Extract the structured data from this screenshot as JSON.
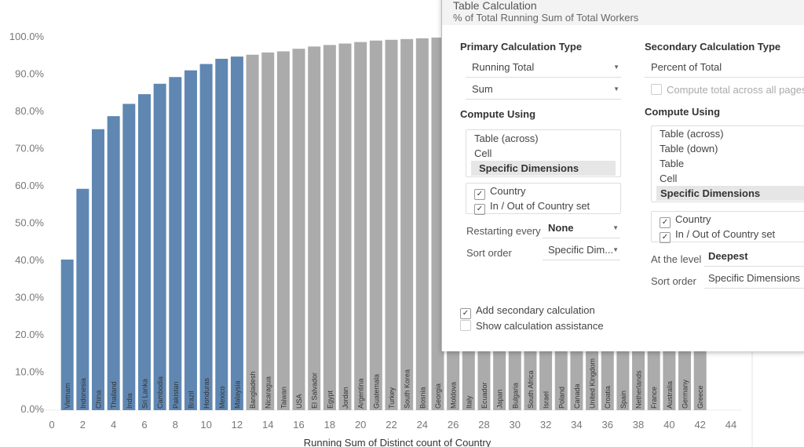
{
  "chart_data": {
    "type": "bar",
    "xlabel": "Running Sum of Distinct count of Country",
    "ylabel": "",
    "xlim": [
      0,
      44
    ],
    "ylim": [
      0,
      100
    ],
    "x_ticks": [
      "0",
      "2",
      "4",
      "6",
      "8",
      "10",
      "12",
      "14",
      "16",
      "18",
      "20",
      "22",
      "24",
      "26",
      "28",
      "30",
      "32",
      "34",
      "36",
      "38",
      "40",
      "42",
      "44"
    ],
    "y_ticks": [
      "0.0%",
      "10.0%",
      "20.0%",
      "30.0%",
      "40.0%",
      "50.0%",
      "60.0%",
      "70.0%",
      "80.0%",
      "90.0%",
      "100.0%"
    ],
    "colors": {
      "in_set": "#5f87b2",
      "out_set": "#ababab"
    },
    "categories": [
      "Vietnam",
      "Indonesia",
      "China",
      "Thailand",
      "India",
      "Sri Lanka",
      "Cambodia",
      "Pakistan",
      "Brazil",
      "Honduras",
      "Mexico",
      "Malaysia",
      "Bangladesh",
      "Nicaragua",
      "Taiwan",
      "USA",
      "El Salvador",
      "Egypt",
      "Jordan",
      "Argentina",
      "Guatemala",
      "Turkey",
      "South Korea",
      "Bosnia",
      "Georgia",
      "Moldova",
      "Italy",
      "Ecuador",
      "Japan",
      "Bulgaria",
      "South Africa",
      "Israel",
      "Poland",
      "Canada",
      "United Kingdom",
      "Croatia",
      "Spain",
      "Netherlands",
      "France",
      "Australia",
      "Germany",
      "Greece"
    ],
    "x": [
      1,
      2,
      3,
      4,
      5,
      6,
      7,
      8,
      9,
      10,
      11,
      12,
      13,
      14,
      15,
      16,
      17,
      18,
      19,
      20,
      21,
      22,
      23,
      24,
      25,
      26,
      27,
      28,
      29,
      30,
      31,
      32,
      33,
      34,
      35,
      36,
      37,
      38,
      39,
      40,
      41,
      42
    ],
    "values": [
      40.0,
      59.0,
      75.0,
      78.5,
      81.8,
      84.4,
      87.2,
      89.0,
      90.8,
      92.5,
      93.9,
      94.5,
      95.0,
      95.6,
      95.9,
      96.6,
      97.2,
      97.6,
      98.0,
      98.4,
      98.8,
      99.0,
      99.2,
      99.4,
      99.6,
      99.7,
      99.75,
      99.8,
      99.85,
      99.88,
      99.9,
      99.92,
      99.94,
      99.95,
      99.96,
      99.97,
      99.98,
      99.99,
      99.99,
      100,
      100,
      100
    ],
    "in_set": [
      true,
      true,
      true,
      true,
      true,
      true,
      true,
      true,
      true,
      true,
      true,
      true,
      false,
      false,
      false,
      false,
      false,
      false,
      false,
      false,
      false,
      false,
      false,
      false,
      false,
      false,
      false,
      false,
      false,
      false,
      false,
      false,
      false,
      false,
      false,
      false,
      false,
      false,
      false,
      false,
      false,
      false
    ],
    "grid": false
  },
  "dialog": {
    "title": "Table Calculation",
    "subtitle": "% of Total Running Sum of Total Workers",
    "primary": {
      "heading": "Primary Calculation Type",
      "type": "Running Total",
      "aggregation": "Sum",
      "compute_heading": "Compute Using",
      "options": [
        "Table (across)",
        "Cell",
        "Specific Dimensions"
      ],
      "selected": "Specific Dimensions",
      "dimensions": [
        "Country",
        "In / Out of Country set"
      ],
      "restarting_label": "Restarting every",
      "restarting_value": "None",
      "sort_label": "Sort order",
      "sort_value": "Specific Dim..."
    },
    "secondary": {
      "heading": "Secondary Calculation Type",
      "type": "Percent of Total",
      "compute_all_pages": "Compute total across all pages",
      "compute_heading": "Compute Using",
      "options": [
        "Table (across)",
        "Table (down)",
        "Table",
        "Cell",
        "Specific Dimensions"
      ],
      "dimensions": [
        "Country",
        "In / Out of Country set"
      ],
      "level_label": "At the level",
      "level_value": "Deepest",
      "sort_label": "Sort order",
      "sort_value": "Specific Dimensions"
    },
    "add_secondary": "Add secondary calculation",
    "show_assistance": "Show calculation assistance"
  }
}
